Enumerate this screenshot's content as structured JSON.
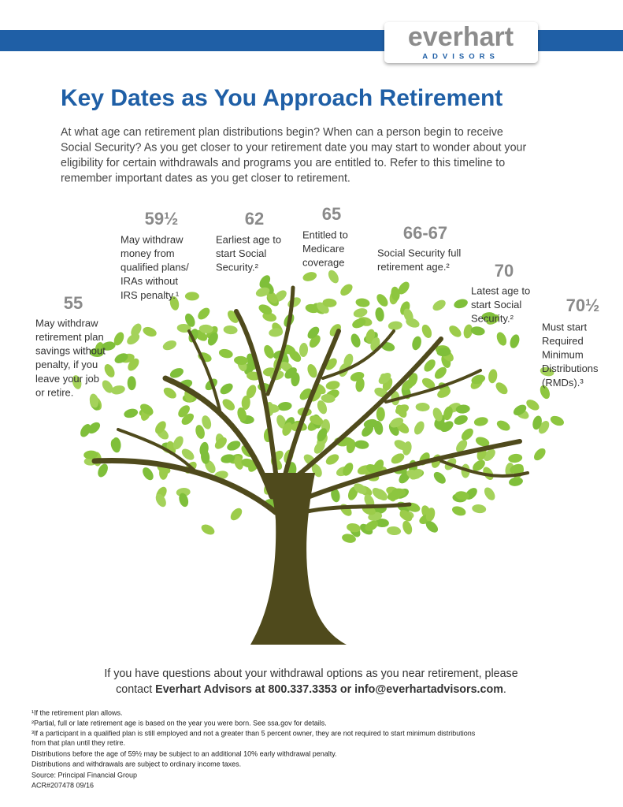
{
  "header": {
    "logo_name": "everhart",
    "logo_sub": "ADVISORS"
  },
  "title": "Key Dates as You Approach Retirement",
  "intro": [
    "At what age can retirement plan distributions begin? When can a person begin to receive",
    "Social Security? As you get closer to your retirement date you may start to wonder about your",
    "eligibility for certain withdrawals and programs you are entitled to. Refer to this timeline to",
    "remember important dates as you get closer to retirement."
  ],
  "milestones": [
    {
      "age": "55",
      "lines": [
        "May withdraw",
        "retirement plan",
        "savings without",
        "penalty, if you",
        "leave your job",
        "or retire."
      ]
    },
    {
      "age": "59½",
      "lines": [
        "May withdraw",
        "money from",
        "qualified plans/",
        "IRAs without",
        "IRS penalty.¹"
      ]
    },
    {
      "age": "62",
      "lines": [
        "Earliest age to",
        "start Social",
        "Security.²"
      ]
    },
    {
      "age": "65",
      "lines": [
        "Entitled to",
        "Medicare",
        "coverage"
      ]
    },
    {
      "age": "66-67",
      "lines": [
        "Social Security full",
        "retirement age.²"
      ]
    },
    {
      "age": "70",
      "lines": [
        "Latest age to",
        "start Social",
        "Security.²"
      ]
    },
    {
      "age": "70½",
      "lines": [
        "Must start",
        "Required",
        "Minimum",
        "Distributions",
        "(RMDs).³"
      ]
    }
  ],
  "contact": {
    "line1": "If you have questions about your withdrawal options as you near retirement, please",
    "line2_lead": "contact ",
    "line2_bold": "Everhart Advisors at 800.337.3353 or info@everhartadvisors.com",
    "line2_end": "."
  },
  "footnotes": [
    "¹If the retirement plan allows.",
    "²Partial, full or late retirement age is based on the year you were born. See ssa.gov for details.",
    "³If a participant in a qualified plan is still employed and not a greater than 5 percent owner, they are not required to start minimum distributions",
    "from that plan until they retire.",
    "Distributions before the age of 59½ may be subject to an additional 10% early withdrawal penalty.",
    "Distributions and withdrawals are subject to ordinary income taxes.",
    "Source: Principal Financial Group",
    "ACR#207478 09/16"
  ]
}
